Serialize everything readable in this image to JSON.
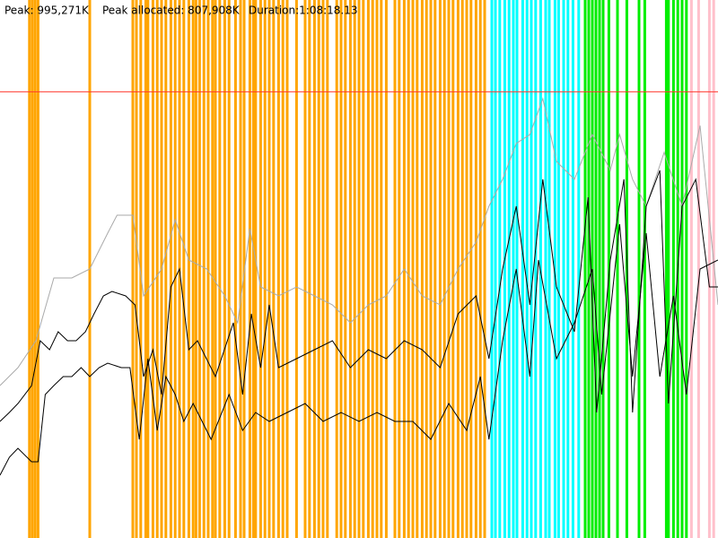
{
  "chart_data": {
    "type": "line",
    "header": [
      "Peak: 995,271K",
      "Peak allocated: 807,908K",
      "Duration:1:08:18.13"
    ],
    "xlim": [
      0,
      100
    ],
    "ylim": [
      0,
      1200000
    ],
    "peak_line": {
      "value": 995271,
      "color": "#ff3b30"
    },
    "events": [
      {
        "color": "#ffa500",
        "x": [
          4.1,
          4.5,
          4.9,
          5.3,
          12.5,
          18.5,
          19,
          19.6,
          20.3,
          20.6,
          21.3,
          21.9,
          22.5,
          23.1,
          23.8,
          24.4,
          25,
          25.6,
          26.3,
          26.9,
          27.3,
          27.8,
          28.4,
          29,
          29.6,
          30,
          30.6,
          31.3,
          31.9,
          32.8,
          33.5,
          34,
          34.8,
          35.3,
          35.6,
          36.3,
          36.9,
          37.5,
          38.1,
          38.8,
          39.4,
          40,
          41.3,
          42.5,
          43.1,
          43.8,
          44.4,
          45,
          45.6,
          46.9,
          47.5,
          48.1,
          48.8,
          49.4,
          50,
          50.6,
          51.3,
          51.9,
          52.5,
          53.1,
          53.8,
          55,
          55.6,
          56.3,
          56.9,
          57.5,
          58.1,
          58.8,
          59.4,
          60,
          60.6,
          61.3,
          61.9,
          62.5,
          63.1,
          63.8,
          64.4,
          65,
          65.6,
          66.3,
          66.9,
          67.5
        ]
      },
      {
        "color": "#00ffff",
        "x": [
          68.5,
          69,
          69.6,
          70.3,
          70.9,
          71.5,
          72,
          72.8,
          73.4,
          74,
          74.6,
          75.3,
          76,
          76.5,
          77.3,
          77.8,
          78.5,
          79.1,
          79.8,
          80.6
        ]
      },
      {
        "color": "#00ee00",
        "x": [
          81.5,
          82,
          82.5,
          83,
          83.5,
          84,
          84.8,
          86,
          87.3,
          89,
          89.8,
          92.8,
          93.1,
          93.8,
          94.4,
          95,
          95.6
        ]
      },
      {
        "color": "#ffc0cb",
        "x": [
          96.3,
          97.3,
          98.8,
          99.4
        ]
      }
    ],
    "series": [
      {
        "color": "#aaaaaa",
        "x": [
          0,
          2.5,
          5,
          7.5,
          10,
          12.5,
          15,
          16.3,
          18.5,
          20,
          22.5,
          24.4,
          26.3,
          28.8,
          31.3,
          33.1,
          34.8,
          36.3,
          38.8,
          41.3,
          43.8,
          46.3,
          48.8,
          51.3,
          53.8,
          56.3,
          58.8,
          61.3,
          63.8,
          66.3,
          68.1,
          70,
          71.9,
          73.8,
          75.6,
          77.5,
          80,
          82.5,
          85,
          86.3,
          88.1,
          90,
          92.5,
          95,
          97.5,
          100
        ],
        "values": [
          340000,
          380000,
          440000,
          580000,
          580000,
          600000,
          680000,
          720000,
          720000,
          540000,
          600000,
          710000,
          620000,
          600000,
          540000,
          480000,
          690000,
          560000,
          540000,
          560000,
          540000,
          520000,
          480000,
          520000,
          540000,
          600000,
          540000,
          520000,
          600000,
          660000,
          740000,
          800000,
          880000,
          900000,
          980000,
          840000,
          800000,
          900000,
          820000,
          900000,
          800000,
          740000,
          860000,
          740000,
          920000,
          520000
        ]
      },
      {
        "color": "#000000",
        "x": [
          0,
          1.3,
          2.5,
          4.4,
          5.6,
          6.9,
          8.1,
          9.4,
          10.6,
          11.9,
          13.1,
          14.4,
          15.6,
          17.5,
          18.8,
          20,
          21.3,
          22.5,
          23.8,
          25,
          26.3,
          27.5,
          30,
          32.5,
          33.8,
          35,
          36.3,
          37.5,
          38.8,
          41.3,
          43.8,
          46.3,
          48.8,
          51.3,
          53.8,
          56.3,
          58.8,
          61.3,
          63.8,
          66.3,
          68.1,
          70,
          71.9,
          73.8,
          75.6,
          77.5,
          80,
          81.9,
          83.1,
          85,
          86.9,
          88.1,
          90,
          91.9,
          93.1,
          95,
          96.9,
          98.8,
          100
        ],
        "values": [
          260000,
          280000,
          300000,
          340000,
          440000,
          420000,
          460000,
          440000,
          440000,
          460000,
          500000,
          540000,
          550000,
          540000,
          520000,
          360000,
          420000,
          320000,
          560000,
          600000,
          420000,
          440000,
          360000,
          480000,
          320000,
          500000,
          380000,
          520000,
          380000,
          400000,
          420000,
          440000,
          380000,
          420000,
          400000,
          440000,
          420000,
          380000,
          500000,
          540000,
          400000,
          600000,
          740000,
          520000,
          800000,
          560000,
          460000,
          760000,
          280000,
          620000,
          800000,
          280000,
          740000,
          820000,
          300000,
          740000,
          800000,
          560000,
          560000
        ]
      },
      {
        "color": "#000000",
        "x": [
          0,
          1.3,
          2.5,
          4.4,
          5.3,
          6.3,
          7.5,
          8.8,
          10,
          11.3,
          12.5,
          13.8,
          15,
          16.9,
          18.1,
          19.4,
          20.6,
          21.9,
          23.1,
          24.4,
          25.6,
          26.9,
          29.4,
          31.9,
          33.8,
          35.6,
          37.5,
          40,
          42.5,
          45,
          47.5,
          50,
          52.5,
          55,
          57.5,
          60,
          62.5,
          65,
          66.9,
          68.1,
          70,
          71.9,
          73.8,
          75,
          77.5,
          80,
          82.5,
          83.8,
          86.3,
          88.1,
          90,
          91.9,
          93.8,
          95.6,
          97.5,
          100
        ],
        "values": [
          140000,
          180000,
          200000,
          170000,
          170000,
          320000,
          340000,
          360000,
          360000,
          380000,
          360000,
          380000,
          390000,
          380000,
          380000,
          220000,
          400000,
          240000,
          360000,
          320000,
          260000,
          300000,
          220000,
          320000,
          240000,
          280000,
          260000,
          280000,
          300000,
          260000,
          280000,
          260000,
          280000,
          260000,
          260000,
          220000,
          300000,
          240000,
          360000,
          220000,
          440000,
          600000,
          360000,
          620000,
          400000,
          480000,
          600000,
          320000,
          700000,
          360000,
          680000,
          360000,
          540000,
          320000,
          600000,
          620000
        ]
      }
    ]
  }
}
